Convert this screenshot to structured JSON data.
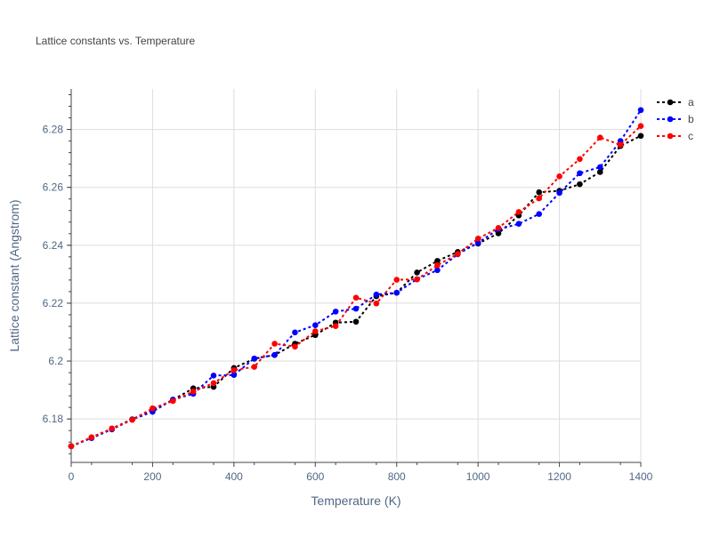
{
  "chart_data": {
    "type": "line",
    "title": "Lattice constants vs. Temperature",
    "xlabel": "Temperature (K)",
    "ylabel": "Lattice constant (Angstrom)",
    "xlim": [
      0,
      1400
    ],
    "ylim": [
      6.165,
      6.294
    ],
    "grid": true,
    "legend_position": "top-right",
    "x_ticks": [
      0,
      200,
      400,
      600,
      800,
      1000,
      1200,
      1400
    ],
    "x_tick_labels": [
      "0",
      "200",
      "400",
      "600",
      "800",
      "1000",
      "1200",
      "1400"
    ],
    "y_ticks": [
      6.18,
      6.2,
      6.22,
      6.24,
      6.26,
      6.28
    ],
    "y_tick_labels": [
      "6.18",
      "6.2",
      "6.22",
      "6.24",
      "6.26",
      "6.28"
    ],
    "x": [
      0,
      50,
      100,
      150,
      200,
      250,
      300,
      350,
      400,
      450,
      500,
      550,
      600,
      650,
      700,
      750,
      800,
      850,
      900,
      950,
      1000,
      1050,
      1100,
      1150,
      1200,
      1250,
      1300,
      1350,
      1400
    ],
    "series": [
      {
        "name": "a",
        "color": "#000000",
        "values": [
          6.1706,
          6.1736,
          6.1767,
          6.1799,
          6.1832,
          6.1866,
          6.1906,
          6.1911,
          6.1976,
          6.2008,
          6.2021,
          6.206,
          6.209,
          6.2133,
          6.2136,
          6.2224,
          6.2236,
          6.2306,
          6.2346,
          6.2377,
          6.2406,
          6.2441,
          6.2503,
          6.2583,
          6.2588,
          6.2611,
          6.2653,
          6.2743,
          6.2778
        ]
      },
      {
        "name": "b",
        "color": "#0000ff",
        "values": [
          6.1706,
          6.1734,
          6.1764,
          6.1798,
          6.1825,
          6.1867,
          6.1887,
          6.195,
          6.1952,
          6.2009,
          6.2021,
          6.2099,
          6.2124,
          6.2171,
          6.2181,
          6.223,
          6.2236,
          6.2283,
          6.2314,
          6.2369,
          6.2409,
          6.2455,
          6.2474,
          6.2508,
          6.2581,
          6.2649,
          6.267,
          6.276,
          6.2867
        ]
      },
      {
        "name": "c",
        "color": "#ff0000",
        "values": [
          6.1706,
          6.1737,
          6.1767,
          6.1797,
          6.1837,
          6.1862,
          6.1895,
          6.1924,
          6.1969,
          6.198,
          6.206,
          6.205,
          6.2103,
          6.2121,
          6.2219,
          6.2199,
          6.2281,
          6.2282,
          6.2331,
          6.237,
          6.2423,
          6.246,
          6.2515,
          6.2562,
          6.2638,
          6.2698,
          6.2772,
          6.2747,
          6.2812
        ]
      }
    ]
  }
}
